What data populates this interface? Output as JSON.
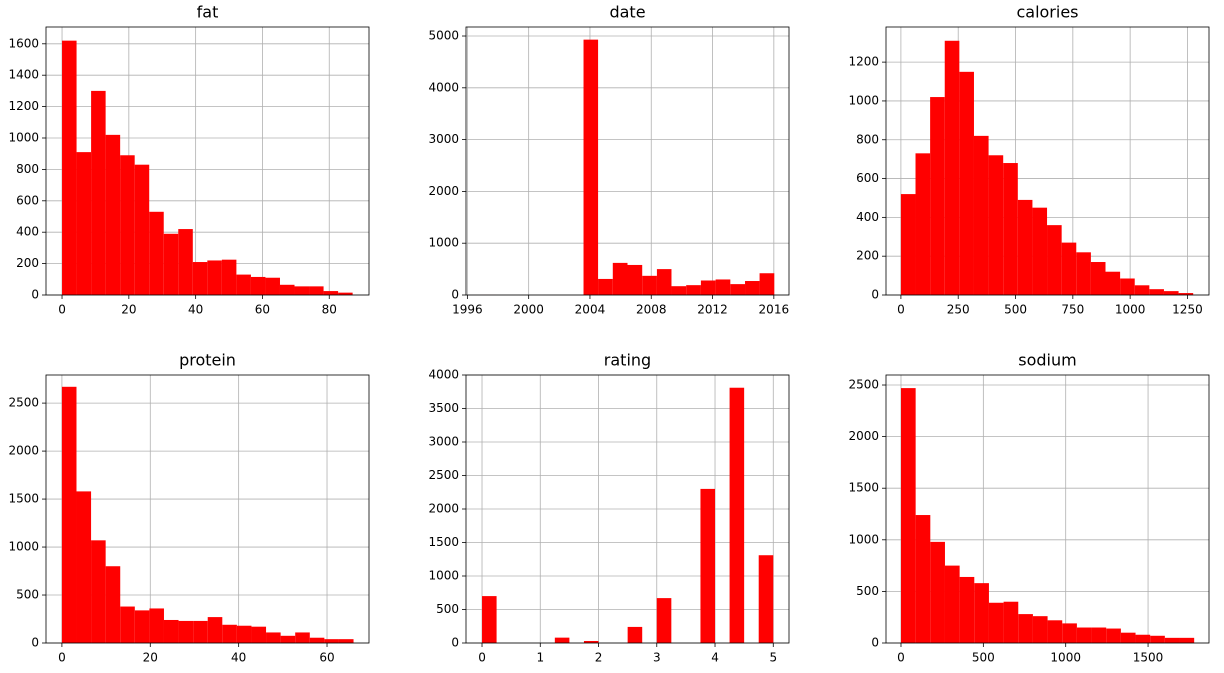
{
  "chart_data": [
    {
      "type": "histogram",
      "title": "fat",
      "color": "#ff0000",
      "grid": true,
      "bins": [
        0,
        4.35,
        8.7,
        13.05,
        17.4,
        21.75,
        26.1,
        30.45,
        34.8,
        39.15,
        43.5,
        47.85,
        52.2,
        56.55,
        60.9,
        65.25,
        69.6,
        73.95,
        78.3,
        82.65,
        87
      ],
      "counts": [
        1620,
        910,
        1300,
        1020,
        890,
        830,
        530,
        390,
        420,
        210,
        220,
        225,
        130,
        115,
        110,
        65,
        55,
        55,
        25,
        15
      ],
      "xlim": [
        -4.8,
        91.9
      ],
      "ylim": [
        0,
        1707
      ],
      "xticks": [
        0,
        20,
        40,
        60,
        80
      ],
      "yticks": [
        0,
        200,
        400,
        600,
        800,
        1000,
        1200,
        1400,
        1600
      ]
    },
    {
      "type": "histogram",
      "title": "date",
      "color": "#ff0000",
      "grid": true,
      "bins": [
        1996.87,
        1997.83,
        1998.79,
        1999.74,
        2000.7,
        2001.66,
        2002.62,
        2003.58,
        2004.53,
        2005.49,
        2006.45,
        2007.41,
        2008.37,
        2009.32,
        2010.28,
        2011.24,
        2012.2,
        2013.16,
        2014.12,
        2015.07,
        2016.03
      ],
      "counts": [
        1,
        0,
        0,
        0,
        0,
        0,
        0,
        4930,
        310,
        620,
        580,
        370,
        500,
        170,
        190,
        280,
        300,
        210,
        270,
        420
      ],
      "xlim": [
        1995.91,
        2016.99
      ],
      "ylim": [
        0,
        5174
      ],
      "xticks": [
        1996,
        2000,
        2004,
        2008,
        2012,
        2016
      ],
      "yticks": [
        0,
        1000,
        2000,
        3000,
        4000,
        5000
      ]
    },
    {
      "type": "histogram",
      "title": "calories",
      "color": "#ff0000",
      "grid": true,
      "bins": [
        0,
        63.75,
        127.5,
        191.25,
        255,
        318.75,
        382.5,
        446.25,
        510,
        573.75,
        637.5,
        701.25,
        765,
        828.75,
        892.5,
        956.25,
        1020,
        1083.75,
        1147.5,
        1211.25,
        1275
      ],
      "counts": [
        520,
        730,
        1020,
        1310,
        1150,
        820,
        720,
        680,
        490,
        450,
        360,
        270,
        220,
        170,
        120,
        85,
        50,
        30,
        20,
        10
      ],
      "xlim": [
        -65,
        1344
      ],
      "ylim": [
        0,
        1381
      ],
      "xticks": [
        0,
        250,
        500,
        750,
        1000,
        1250
      ],
      "yticks": [
        0,
        200,
        400,
        600,
        800,
        1000,
        1200
      ]
    },
    {
      "type": "histogram",
      "title": "protein",
      "color": "#ff0000",
      "grid": true,
      "bins": [
        0,
        3.3,
        6.6,
        9.9,
        13.2,
        16.5,
        19.8,
        23.1,
        26.4,
        29.7,
        33,
        36.3,
        39.6,
        42.9,
        46.2,
        49.5,
        52.8,
        56.1,
        59.4,
        62.7,
        66
      ],
      "counts": [
        2670,
        1580,
        1070,
        800,
        380,
        340,
        360,
        240,
        230,
        230,
        270,
        190,
        180,
        170,
        110,
        75,
        110,
        55,
        40,
        40
      ],
      "xlim": [
        -3.6,
        69.5
      ],
      "ylim": [
        0,
        2793
      ],
      "xticks": [
        0,
        20,
        40,
        60
      ],
      "yticks": [
        0,
        500,
        1000,
        1500,
        2000,
        2500
      ]
    },
    {
      "type": "histogram",
      "title": "rating",
      "color": "#ff0000",
      "grid": true,
      "bins": [
        0,
        0.25,
        0.5,
        0.75,
        1,
        1.25,
        1.5,
        1.75,
        2,
        2.25,
        2.5,
        2.75,
        3,
        3.25,
        3.5,
        3.75,
        4,
        4.25,
        4.5,
        4.75,
        5
      ],
      "counts": [
        700,
        0,
        0,
        0,
        0,
        80,
        0,
        30,
        0,
        0,
        240,
        0,
        670,
        0,
        0,
        2300,
        0,
        3810,
        0,
        1310
      ],
      "xlim": [
        -0.275,
        5.27
      ],
      "ylim": [
        0,
        4000
      ],
      "xticks": [
        0,
        1,
        2,
        3,
        4,
        5
      ],
      "yticks": [
        0,
        500,
        1000,
        1500,
        2000,
        2500,
        3000,
        3500,
        4000
      ]
    },
    {
      "type": "histogram",
      "title": "sodium",
      "color": "#ff0000",
      "grid": true,
      "bins": [
        0,
        89,
        178,
        267,
        356,
        445,
        534,
        623,
        712,
        801,
        890,
        979,
        1068,
        1157,
        1246,
        1335,
        1424,
        1513,
        1602,
        1691,
        1780
      ],
      "counts": [
        2470,
        1240,
        980,
        750,
        640,
        580,
        390,
        400,
        280,
        260,
        220,
        190,
        150,
        150,
        140,
        100,
        80,
        70,
        50,
        50
      ],
      "xlim": [
        -91,
        1870
      ],
      "ylim": [
        0,
        2597
      ],
      "xticks": [
        0,
        500,
        1000,
        1500
      ],
      "yticks": [
        0,
        500,
        1000,
        1500,
        2000,
        2500
      ]
    }
  ]
}
